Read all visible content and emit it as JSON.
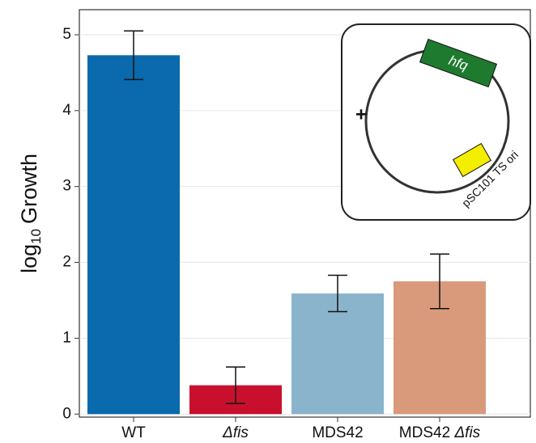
{
  "chart_data": {
    "type": "bar",
    "y_label": {
      "base": "log",
      "sub": "10",
      "text": "Growth"
    },
    "categories": [
      "WT",
      "Δfis",
      "MDS42",
      "MDS42 Δfis"
    ],
    "values": [
      4.73,
      0.38,
      1.59,
      1.75
    ],
    "errors": [
      0.32,
      0.24,
      0.24,
      0.36
    ],
    "colors": [
      "#0a6aad",
      "#c8102e",
      "#8ab4cc",
      "#d99a7c"
    ],
    "ylim": [
      -0.04,
      5.33
    ],
    "yticks": [
      0,
      1,
      2,
      3,
      4,
      5
    ],
    "grid": true
  },
  "inset": {
    "symbol": "+",
    "gene": "hfq",
    "origin": "pSC101 TS ori"
  }
}
